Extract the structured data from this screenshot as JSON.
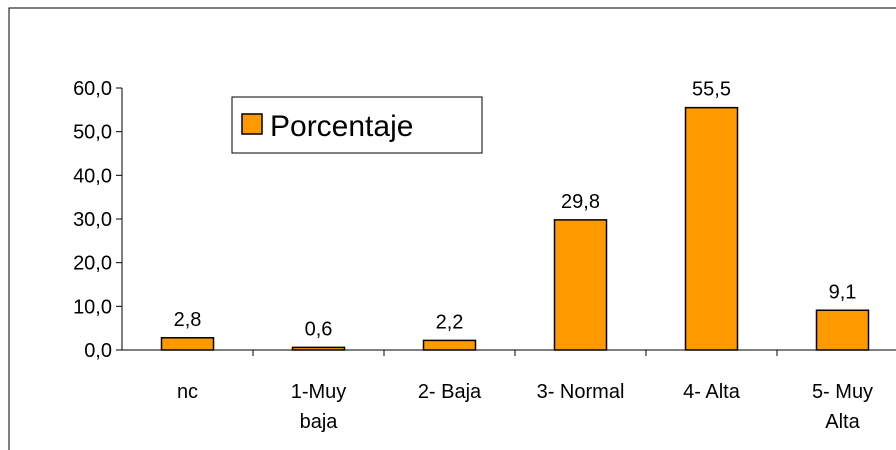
{
  "chart_data": {
    "type": "bar",
    "categories": [
      "nc",
      "1-Muy baja",
      "2- Baja",
      "3- Normal",
      "4- Alta",
      "5- Muy Alta"
    ],
    "series": [
      {
        "name": "Porcentaje",
        "color": "#ff9900",
        "values": [
          2.8,
          0.6,
          2.2,
          29.8,
          55.5,
          9.1
        ],
        "value_labels": [
          "2,8",
          "0,6",
          "2,2",
          "29,8",
          "55,5",
          "9,1"
        ]
      }
    ],
    "ylim": [
      0,
      60
    ],
    "yticks": [
      {
        "value": 0,
        "label": "0,0"
      },
      {
        "value": 10,
        "label": "10,0"
      },
      {
        "value": 20,
        "label": "20,0"
      },
      {
        "value": 30,
        "label": "30,0"
      },
      {
        "value": 40,
        "label": "40,0"
      },
      {
        "value": 50,
        "label": "50,0"
      },
      {
        "value": 60,
        "label": "60,0"
      }
    ],
    "grid": false,
    "legend": "upper left"
  }
}
